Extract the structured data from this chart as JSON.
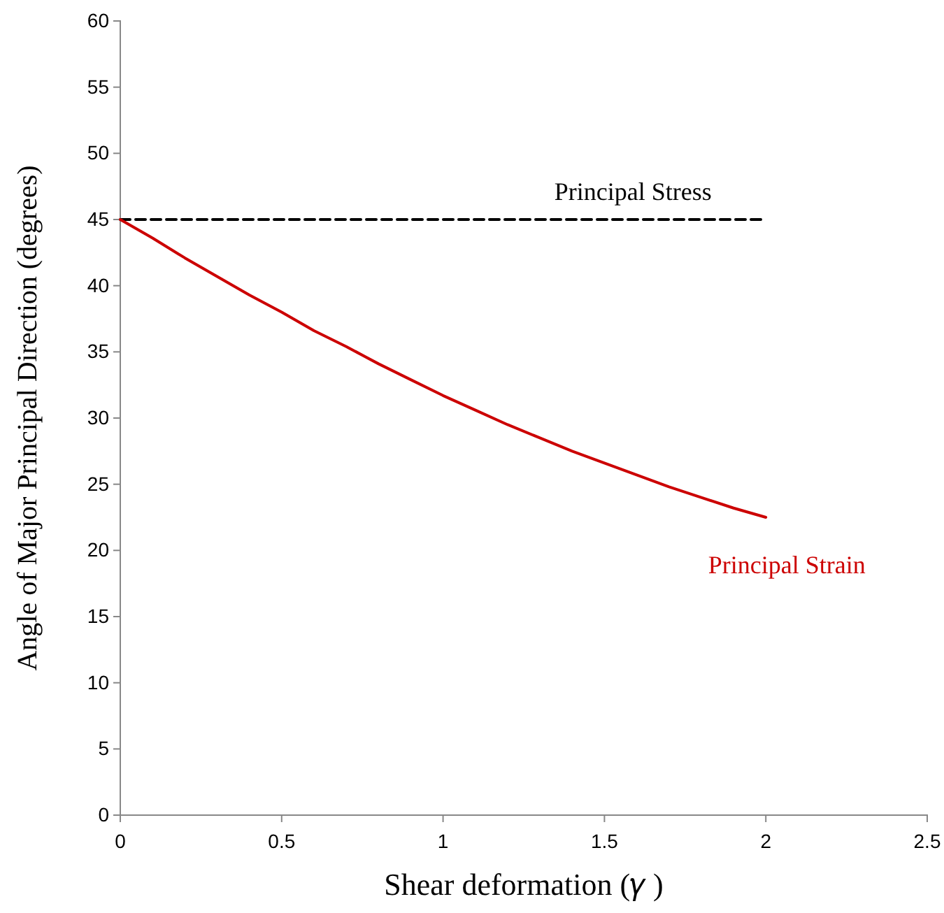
{
  "chart_data": {
    "type": "line",
    "xlabel": "Shear deformation (𝛾 )",
    "ylabel": "Angle of Major Principal Direction (degrees)",
    "xlim": [
      0,
      2.5
    ],
    "xticks": [
      0,
      0.5,
      1,
      1.5,
      2,
      2.5
    ],
    "ylim": [
      0,
      60
    ],
    "yticks": [
      0,
      5,
      10,
      15,
      20,
      25,
      30,
      35,
      40,
      45,
      50,
      55,
      60
    ],
    "grid": false,
    "legend": false,
    "marker": "none",
    "series": [
      {
        "name": "Principal Stress",
        "color": "#000000",
        "line_style": "dashed",
        "x": [
          0,
          2
        ],
        "values": [
          45,
          45
        ]
      },
      {
        "name": "Principal Strain",
        "color": "#cc0000",
        "line_style": "solid",
        "x": [
          0,
          0.1,
          0.2,
          0.3,
          0.4,
          0.5,
          0.6,
          0.7,
          0.8,
          0.9,
          1,
          1.1,
          1.2,
          1.3,
          1.4,
          1.5,
          1.6,
          1.7,
          1.8,
          1.9,
          2
        ],
        "values": [
          45,
          43.6,
          42.1,
          40.7,
          39.3,
          38,
          36.6,
          35.4,
          34.1,
          32.9,
          31.7,
          30.6,
          29.5,
          28.5,
          27.5,
          26.6,
          25.7,
          24.8,
          24,
          23.2,
          22.5
        ]
      }
    ]
  }
}
